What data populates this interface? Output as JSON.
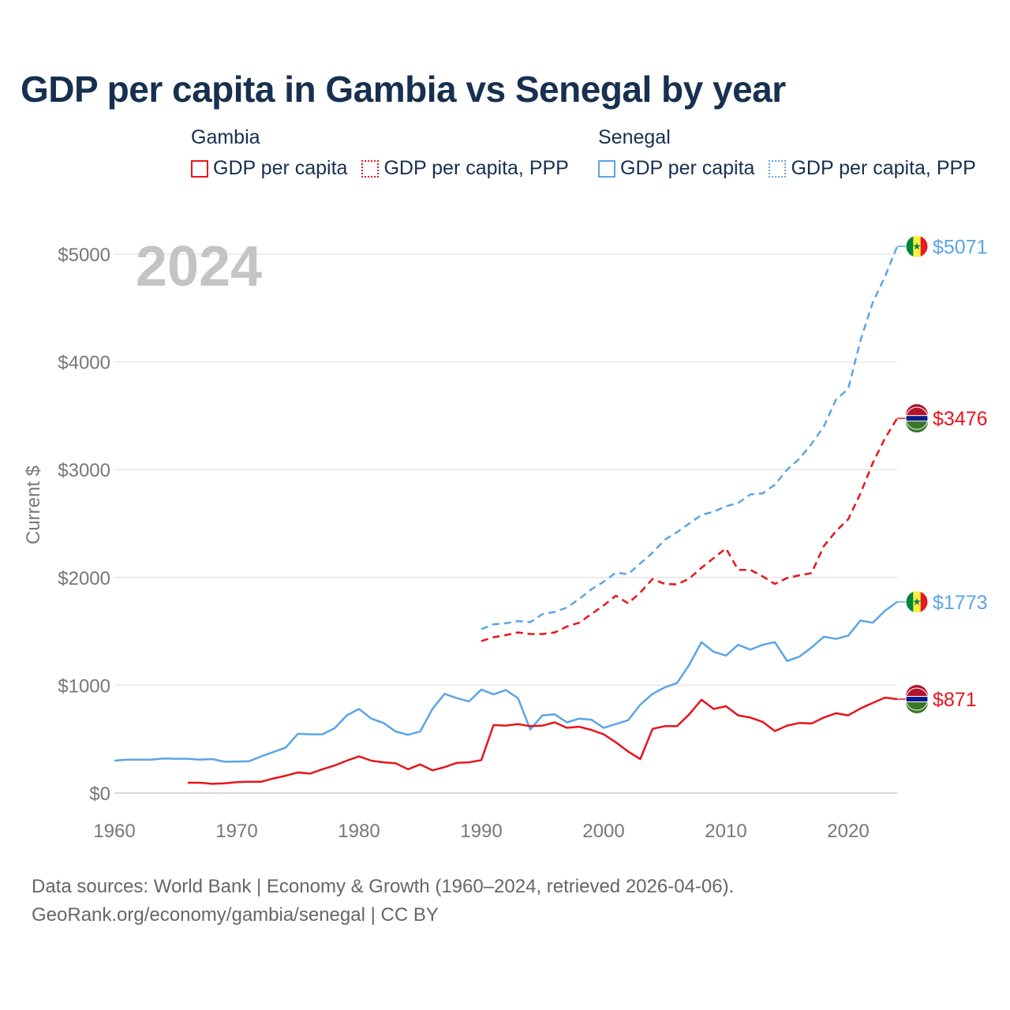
{
  "title": "GDP per capita in Gambia vs Senegal by year",
  "legend": {
    "groups": [
      {
        "name": "Gambia",
        "color": "#e8141c",
        "items": [
          {
            "label": "GDP per capita",
            "style": "solid"
          },
          {
            "label": "GDP per capita, PPP",
            "style": "dotted"
          }
        ]
      },
      {
        "name": "Senegal",
        "color": "#5aa5e6",
        "items": [
          {
            "label": "GDP per capita",
            "style": "solid"
          },
          {
            "label": "GDP per capita, PPP",
            "style": "dotted"
          }
        ]
      }
    ]
  },
  "year_label": "2024",
  "source": {
    "line1": "Data sources: World Bank | Economy & Growth (1960–2024, retrieved 2026-04-06).",
    "line2": "GeoRank.org/economy/gambia/senegal | CC BY"
  },
  "chart_data": {
    "type": "line",
    "title": "GDP per capita in Gambia vs Senegal by year",
    "ylabel": "Current $",
    "xlabel": "",
    "xlim": [
      1960,
      2024
    ],
    "ylim": [
      0,
      5200
    ],
    "xticks": [
      1960,
      1970,
      1980,
      1990,
      2000,
      2010,
      2020
    ],
    "yticks": [
      0,
      1000,
      2000,
      3000,
      4000,
      5000
    ],
    "ytick_labels": [
      "$0",
      "$1000",
      "$2000",
      "$3000",
      "$4000",
      "$5000"
    ],
    "grid": true,
    "series": [
      {
        "name": "Senegal GDP per capita",
        "country": "Senegal",
        "color": "#5aa5e6",
        "dash": "solid",
        "end_label": "$1773",
        "x0": 1960,
        "values": [
          300,
          310,
          310,
          310,
          320,
          318,
          318,
          310,
          315,
          290,
          292,
          294,
          340,
          380,
          420,
          550,
          545,
          545,
          600,
          720,
          780,
          690,
          650,
          570,
          540,
          570,
          780,
          920,
          880,
          850,
          960,
          915,
          955,
          880,
          590,
          720,
          730,
          655,
          690,
          680,
          605,
          640,
          675,
          820,
          920,
          980,
          1020,
          1190,
          1400,
          1310,
          1275,
          1375,
          1330,
          1375,
          1400,
          1225,
          1265,
          1350,
          1450,
          1430,
          1460,
          1600,
          1580,
          1690,
          1773
        ]
      },
      {
        "name": "Senegal GDP per capita, PPP",
        "country": "Senegal",
        "color": "#5aa5e6",
        "dash": "dashed",
        "end_label": "$5071",
        "x0": 1990,
        "values": [
          1520,
          1565,
          1575,
          1595,
          1585,
          1660,
          1680,
          1720,
          1800,
          1890,
          1960,
          2045,
          2030,
          2130,
          2230,
          2350,
          2420,
          2500,
          2580,
          2610,
          2660,
          2690,
          2770,
          2780,
          2860,
          3000,
          3100,
          3240,
          3400,
          3650,
          3750,
          4200,
          4550,
          4790,
          5071
        ]
      },
      {
        "name": "Gambia GDP per capita",
        "country": "Gambia",
        "color": "#e8141c",
        "dash": "solid",
        "end_label": "$871",
        "x0": 1966,
        "values": [
          95,
          95,
          85,
          90,
          100,
          105,
          105,
          135,
          160,
          190,
          180,
          220,
          255,
          300,
          340,
          300,
          285,
          275,
          220,
          265,
          210,
          240,
          280,
          285,
          305,
          630,
          625,
          640,
          620,
          625,
          655,
          605,
          615,
          585,
          545,
          470,
          385,
          315,
          595,
          620,
          620,
          730,
          865,
          780,
          805,
          720,
          700,
          660,
          575,
          625,
          650,
          645,
          700,
          740,
          720,
          785,
          835,
          885,
          871
        ]
      },
      {
        "name": "Gambia GDP per capita, PPP",
        "country": "Gambia",
        "color": "#e8141c",
        "dash": "dashed",
        "end_label": "$3476",
        "x0": 1990,
        "values": [
          1410,
          1445,
          1465,
          1490,
          1475,
          1475,
          1490,
          1545,
          1580,
          1660,
          1740,
          1830,
          1760,
          1860,
          1985,
          1940,
          1935,
          1990,
          2090,
          2180,
          2270,
          2070,
          2070,
          2010,
          1940,
          1995,
          2020,
          2040,
          2290,
          2430,
          2540,
          2780,
          3060,
          3290,
          3476
        ]
      }
    ]
  }
}
